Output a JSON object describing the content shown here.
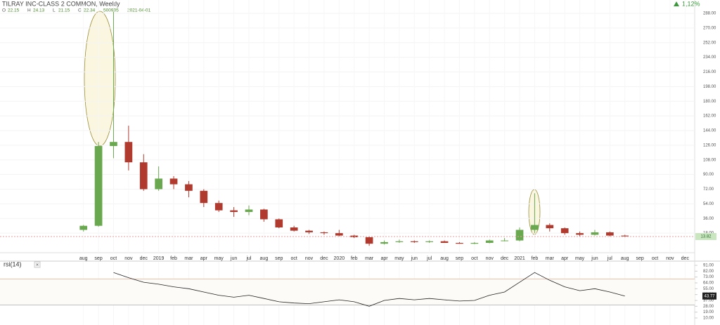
{
  "chart_data": {
    "type": "candlestick",
    "title": "TILRAY INC-CLASS 2 COMMON, Weekly",
    "ohlc_readout": [
      {
        "label": "O",
        "value": 22.15
      },
      {
        "label": "H",
        "value": 24.13
      },
      {
        "label": "L",
        "value": 21.15
      },
      {
        "label": "C",
        "value": 22.34
      }
    ],
    "volume_readout": 500905,
    "date_readout": "2021-04-01",
    "change": {
      "value": 1.12,
      "label": "1,12%"
    },
    "up_color": "#6aa84f",
    "down_color": "#b03a2e",
    "categories": [
      "aug",
      "sep",
      "oct",
      "nov",
      "dec",
      "2019",
      "feb",
      "mar",
      "apr",
      "may",
      "jun",
      "jul",
      "aug",
      "sep",
      "oct",
      "nov",
      "dec",
      "2020",
      "feb",
      "mar",
      "apr",
      "may",
      "jun",
      "jul",
      "aug",
      "sep",
      "oct",
      "nov",
      "dec",
      "2021",
      "feb",
      "mar",
      "apr",
      "may",
      "jun",
      "jul",
      "aug",
      "sep",
      "oct",
      "nov",
      "dec"
    ],
    "open": [
      22,
      27,
      125,
      130,
      105,
      72,
      85,
      78,
      70,
      55,
      46,
      44,
      47,
      35,
      25,
      21,
      19,
      18,
      15,
      13,
      5,
      7,
      8,
      7,
      8,
      6,
      5,
      6,
      9,
      9,
      22,
      28,
      24,
      18,
      16,
      19,
      15,
      null,
      null,
      null,
      null
    ],
    "high": [
      28,
      130,
      290,
      150,
      115,
      100,
      88,
      82,
      72,
      58,
      50,
      52,
      48,
      36,
      27,
      22,
      20,
      22,
      16,
      14,
      9,
      10,
      9,
      9,
      9,
      7,
      7,
      10,
      12,
      25,
      67,
      30,
      25,
      20,
      22,
      20,
      16,
      null,
      null,
      null,
      null
    ],
    "low": [
      20,
      26,
      110,
      95,
      70,
      70,
      72,
      62,
      50,
      44,
      38,
      40,
      32,
      24,
      20,
      17,
      16,
      14,
      12,
      2.5,
      4,
      6,
      6,
      6,
      6,
      5,
      4.5,
      5.5,
      8,
      8,
      18,
      20,
      16,
      14,
      15,
      14,
      13,
      null,
      null,
      null,
      null
    ],
    "close": [
      27,
      125,
      130,
      105,
      72,
      85,
      78,
      70,
      55,
      46,
      44,
      47,
      35,
      25,
      21,
      19,
      18,
      15,
      13,
      5,
      7,
      8,
      7,
      8,
      6,
      5,
      6,
      9,
      9,
      22,
      28,
      24,
      18,
      16,
      19,
      15,
      14,
      null,
      null,
      null,
      null
    ],
    "last_price": 13.82,
    "ylim": [
      0,
      288
    ],
    "yticks": [
      {
        "value": 18,
        "label": "18.00"
      },
      {
        "value": 36,
        "label": "36.00"
      },
      {
        "value": 54,
        "label": "54.00"
      },
      {
        "value": 72,
        "label": "72.00"
      },
      {
        "value": 90,
        "label": "90.00"
      },
      {
        "value": 108,
        "label": "108.00"
      },
      {
        "value": 126,
        "label": "126.00"
      },
      {
        "value": 144,
        "label": "144.00"
      },
      {
        "value": 162,
        "label": "162.00"
      },
      {
        "value": 180,
        "label": "180.00"
      },
      {
        "value": 198,
        "label": "198.00"
      },
      {
        "value": 216,
        "label": "216.00"
      },
      {
        "value": 234,
        "label": "234.00"
      },
      {
        "value": 252,
        "label": "252.00"
      },
      {
        "value": 270,
        "label": "270.00"
      },
      {
        "value": 288,
        "label": "288.00"
      }
    ],
    "rsi": {
      "name": "rsi(14)",
      "color": "#222222",
      "values": [
        null,
        null,
        80,
        72,
        65,
        62,
        58,
        55,
        50,
        45,
        42,
        45,
        40,
        35,
        33,
        32,
        35,
        38,
        35,
        28,
        37,
        40,
        38,
        40,
        38,
        36,
        37,
        45,
        50,
        65,
        80,
        68,
        58,
        52,
        55,
        50,
        43.77,
        null,
        null,
        null,
        null
      ],
      "last": 43.77,
      "ylim": [
        10,
        91
      ],
      "bands": [
        30,
        70
      ],
      "yticks": [
        {
          "value": 10,
          "label": "10.00"
        },
        {
          "value": 19,
          "label": "19.00"
        },
        {
          "value": 28,
          "label": "28.00"
        },
        {
          "value": 37,
          "label": "37.00"
        },
        {
          "value": 46,
          "label": "46.00"
        },
        {
          "value": 55,
          "label": "55.00"
        },
        {
          "value": 64,
          "label": "64.00"
        },
        {
          "value": 73,
          "label": "73.00"
        },
        {
          "value": 82,
          "label": "82.00"
        },
        {
          "value": 91,
          "label": "91.00"
        }
      ]
    }
  }
}
